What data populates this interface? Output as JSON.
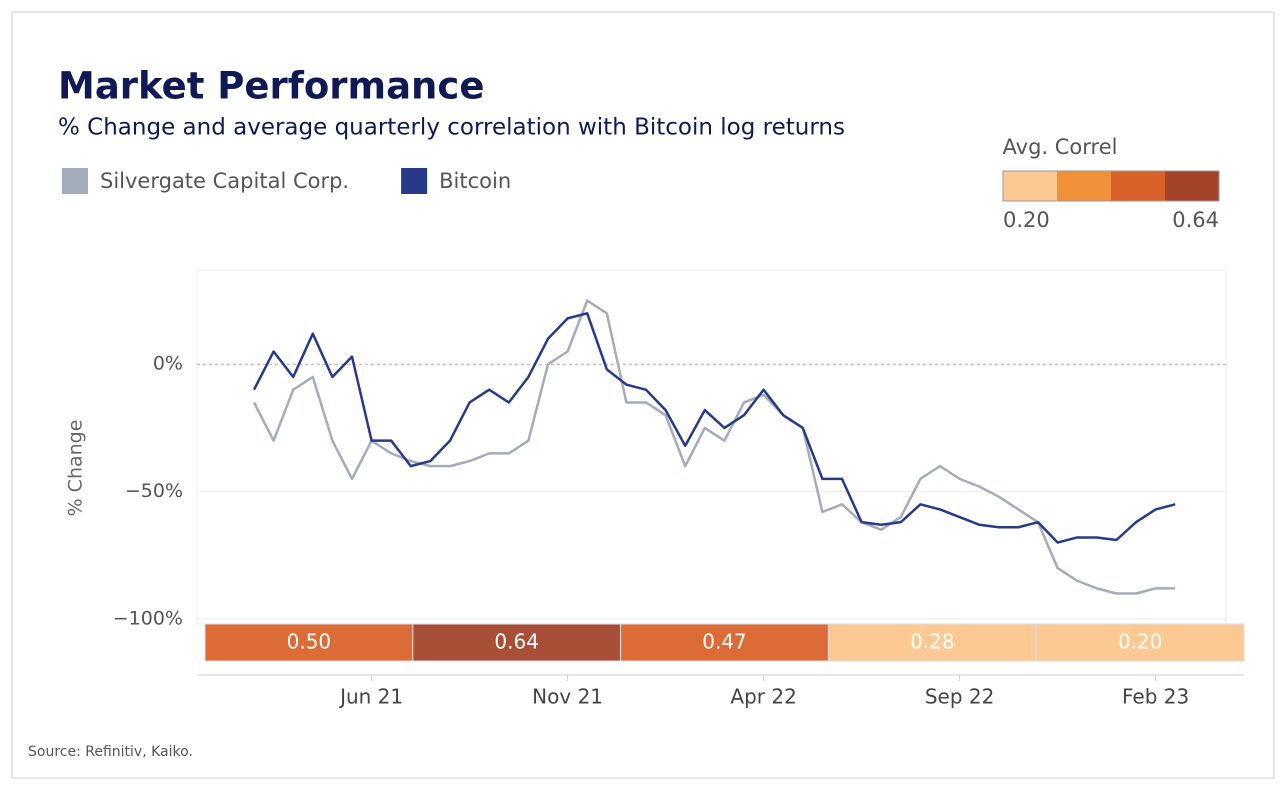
{
  "chart_data": {
    "type": "line",
    "title": "Market Performance",
    "subtitle": "% Change and average quarterly correlation with Bitcoin log returns",
    "y_label": "% Change",
    "source": "Source: Refinitiv, Kaiko.",
    "categories": [
      null,
      null,
      null,
      null,
      null,
      null,
      "Jun 21",
      null,
      null,
      null,
      null,
      null,
      null,
      null,
      null,
      null,
      "Nov 21",
      null,
      null,
      null,
      null,
      null,
      null,
      null,
      null,
      null,
      "Apr 22",
      null,
      null,
      null,
      null,
      null,
      null,
      null,
      null,
      null,
      "Sep 22",
      null,
      null,
      null,
      null,
      null,
      null,
      null,
      null,
      null,
      "Feb 23",
      null
    ],
    "series": [
      {
        "name": "Silvergate Capital Corp.",
        "color": "#a3acba",
        "values": [
          -15,
          -30,
          -10,
          -5,
          -30,
          -45,
          -30,
          -35,
          -38,
          -40,
          -40,
          -38,
          -35,
          -35,
          -30,
          0,
          5,
          25,
          20,
          -15,
          -15,
          -20,
          -40,
          -25,
          -30,
          -15,
          -12,
          -20,
          -25,
          -58,
          -55,
          -62,
          -65,
          -60,
          -45,
          -40,
          -45,
          -48,
          -52,
          -57,
          -62,
          -80,
          -85,
          -88,
          -90,
          -90,
          -88,
          -88
        ]
      },
      {
        "name": "Bitcoin",
        "color": "#273a8a",
        "values": [
          -10,
          5,
          -5,
          12,
          -5,
          3,
          -30,
          -30,
          -40,
          -38,
          -30,
          -15,
          -10,
          -15,
          -5,
          10,
          18,
          20,
          -2,
          -8,
          -10,
          -18,
          -32,
          -18,
          -25,
          -20,
          -10,
          -20,
          -25,
          -45,
          -45,
          -62,
          -63,
          -62,
          -55,
          -57,
          -60,
          -63,
          -64,
          -64,
          -62,
          -70,
          -68,
          -68,
          -69,
          -62,
          -57,
          -55
        ]
      }
    ],
    "ylim": [
      -122,
      37
    ],
    "yticks": [
      {
        "value": 0,
        "label": "0%"
      },
      {
        "value": -50,
        "label": "−50%"
      },
      {
        "value": -100,
        "label": "−100%"
      }
    ],
    "correlation": {
      "values": [
        0.5,
        0.64,
        0.47,
        0.28,
        0.2
      ],
      "value_labels": [
        "0.50",
        "0.64",
        "0.47",
        "0.28",
        "0.20"
      ],
      "colors": [
        "#dc6b36",
        "#a84f38",
        "#dc6b36",
        "#fdc992",
        "#fdc992"
      ]
    },
    "correlation_scale": {
      "title": "Avg. Correl",
      "values": [
        0.2,
        0.64
      ],
      "value_labels": [
        "0.20",
        "0.64"
      ],
      "colors": [
        "#fdc992",
        "#f0913a",
        "#d9622b",
        "#a3432a"
      ]
    }
  }
}
